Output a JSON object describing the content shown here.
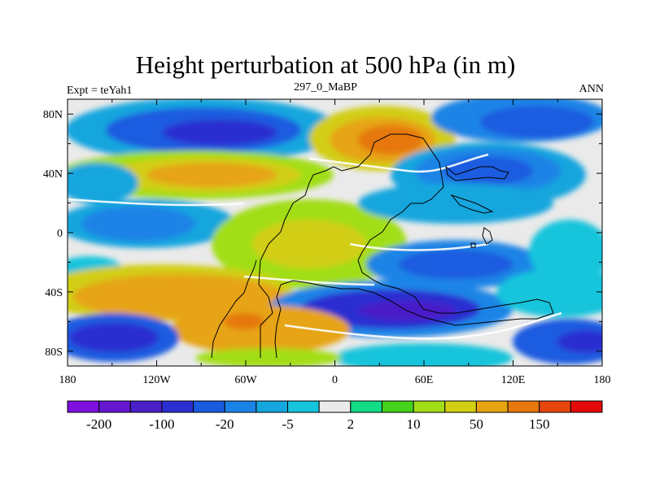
{
  "title": "Height perturbation at 500 hPa (in m)",
  "subtitle_left": "Expt = teYah1",
  "subtitle_center": "297_0_MaBP",
  "subtitle_right": "ANN",
  "map": {
    "lat_labels": [
      "80N",
      "40N",
      "0",
      "40S",
      "80S"
    ],
    "lon_labels": [
      "180",
      "120W",
      "60W",
      "0",
      "60E",
      "120E",
      "180"
    ],
    "lat_values": [
      80,
      40,
      0,
      -40,
      -80
    ],
    "lon_values": [
      -180,
      -120,
      -60,
      0,
      60,
      120,
      180
    ],
    "lat_range": [
      -90,
      90
    ],
    "lon_range": [
      -180,
      180
    ]
  },
  "colorbar": {
    "colors": [
      "#7d10de",
      "#6418d0",
      "#4a1fc8",
      "#2c2fd0",
      "#1a5be0",
      "#1a84e6",
      "#16a6de",
      "#16c4dc",
      "#eaeaea",
      "#12dc86",
      "#44d21a",
      "#a2de18",
      "#d2ce12",
      "#e6a412",
      "#e6780e",
      "#e6460e",
      "#e20a0a"
    ],
    "labels": [
      "-200",
      "-100",
      "-20",
      "-5",
      "2",
      "10",
      "50",
      "150"
    ]
  },
  "colors": {
    "neutral": "#eaeaea",
    "coast": "#000000"
  }
}
